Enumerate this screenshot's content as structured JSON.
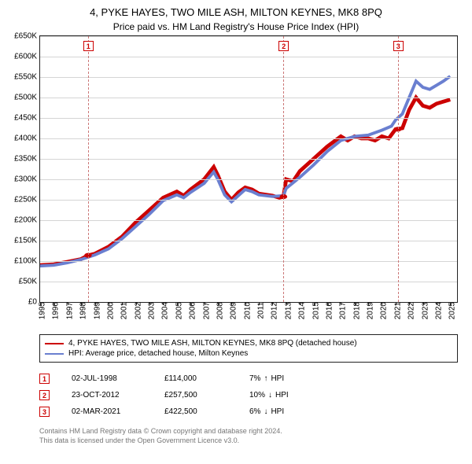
{
  "title": "4, PYKE HAYES, TWO MILE ASH, MILTON KEYNES, MK8 8PQ",
  "subtitle": "Price paid vs. HM Land Registry's House Price Index (HPI)",
  "chart": {
    "type": "line",
    "background_color": "#ffffff",
    "grid_color": "#d5d5d5",
    "y": {
      "min": 0,
      "max": 650000,
      "step": 50000,
      "labels": [
        "£0",
        "£50K",
        "£100K",
        "£150K",
        "£200K",
        "£250K",
        "£300K",
        "£350K",
        "£400K",
        "£450K",
        "£500K",
        "£550K",
        "£600K",
        "£650K"
      ]
    },
    "x": {
      "min": 1995,
      "max": 2025.5,
      "labels": [
        "1995",
        "1996",
        "1997",
        "1998",
        "1999",
        "2000",
        "2001",
        "2002",
        "2003",
        "2004",
        "2005",
        "2006",
        "2007",
        "2008",
        "2009",
        "2010",
        "2011",
        "2012",
        "2013",
        "2014",
        "2015",
        "2016",
        "2017",
        "2018",
        "2019",
        "2020",
        "2021",
        "2022",
        "2023",
        "2024",
        "2025"
      ]
    },
    "series": [
      {
        "name": "series1",
        "color": "#cc0000",
        "width": 1.6,
        "points": [
          [
            1995,
            90000
          ],
          [
            1996,
            92000
          ],
          [
            1997,
            98000
          ],
          [
            1998,
            105000
          ],
          [
            1998.5,
            114000
          ],
          [
            1999,
            118000
          ],
          [
            2000,
            135000
          ],
          [
            2001,
            160000
          ],
          [
            2002,
            195000
          ],
          [
            2003,
            225000
          ],
          [
            2004,
            255000
          ],
          [
            2005,
            270000
          ],
          [
            2005.5,
            260000
          ],
          [
            2006,
            275000
          ],
          [
            2007,
            300000
          ],
          [
            2007.7,
            330000
          ],
          [
            2008,
            310000
          ],
          [
            2008.5,
            270000
          ],
          [
            2009,
            250000
          ],
          [
            2009.5,
            268000
          ],
          [
            2010,
            280000
          ],
          [
            2010.5,
            275000
          ],
          [
            2011,
            265000
          ],
          [
            2012,
            260000
          ],
          [
            2012.5,
            255000
          ],
          [
            2012.8,
            257500
          ],
          [
            2013,
            300000
          ],
          [
            2013.5,
            295000
          ],
          [
            2014,
            320000
          ],
          [
            2015,
            350000
          ],
          [
            2016,
            380000
          ],
          [
            2017,
            405000
          ],
          [
            2017.5,
            395000
          ],
          [
            2018,
            405000
          ],
          [
            2018.5,
            400000
          ],
          [
            2019,
            400000
          ],
          [
            2019.5,
            395000
          ],
          [
            2020,
            405000
          ],
          [
            2020.5,
            400000
          ],
          [
            2021,
            422500
          ],
          [
            2021.5,
            425000
          ],
          [
            2022,
            470000
          ],
          [
            2022.5,
            500000
          ],
          [
            2023,
            480000
          ],
          [
            2023.5,
            475000
          ],
          [
            2024,
            485000
          ],
          [
            2024.5,
            490000
          ],
          [
            2025,
            495000
          ]
        ]
      },
      {
        "name": "series2",
        "color": "#6a7fd0",
        "width": 1.3,
        "points": [
          [
            1995,
            88000
          ],
          [
            1996,
            90000
          ],
          [
            1997,
            96000
          ],
          [
            1998,
            104000
          ],
          [
            1999,
            115000
          ],
          [
            2000,
            130000
          ],
          [
            2001,
            155000
          ],
          [
            2002,
            185000
          ],
          [
            2003,
            215000
          ],
          [
            2004,
            248000
          ],
          [
            2005,
            262000
          ],
          [
            2005.5,
            255000
          ],
          [
            2006,
            268000
          ],
          [
            2007,
            290000
          ],
          [
            2007.7,
            318000
          ],
          [
            2008,
            300000
          ],
          [
            2008.5,
            262000
          ],
          [
            2009,
            245000
          ],
          [
            2009.5,
            260000
          ],
          [
            2010,
            275000
          ],
          [
            2010.5,
            270000
          ],
          [
            2011,
            262000
          ],
          [
            2012,
            258000
          ],
          [
            2012.8,
            260000
          ],
          [
            2013,
            278000
          ],
          [
            2014,
            305000
          ],
          [
            2015,
            335000
          ],
          [
            2016,
            368000
          ],
          [
            2017,
            395000
          ],
          [
            2018,
            405000
          ],
          [
            2019,
            408000
          ],
          [
            2020,
            420000
          ],
          [
            2020.7,
            430000
          ],
          [
            2021,
            445000
          ],
          [
            2021.5,
            460000
          ],
          [
            2022,
            500000
          ],
          [
            2022.5,
            540000
          ],
          [
            2023,
            525000
          ],
          [
            2023.5,
            520000
          ],
          [
            2024,
            530000
          ],
          [
            2024.5,
            540000
          ],
          [
            2025,
            552000
          ]
        ]
      }
    ],
    "markers": [
      {
        "n": "1",
        "year": 1998.5
      },
      {
        "n": "2",
        "year": 2012.8
      },
      {
        "n": "3",
        "year": 2021.17
      }
    ],
    "sale_points": [
      {
        "year": 1998.5,
        "value": 114000
      },
      {
        "year": 2012.8,
        "value": 257500
      },
      {
        "year": 2021.17,
        "value": 422500
      }
    ],
    "point_color": "#cc0000",
    "point_radius": 3
  },
  "legend": [
    {
      "color": "#cc0000",
      "label": "4, PYKE HAYES, TWO MILE ASH, MILTON KEYNES, MK8 8PQ (detached house)"
    },
    {
      "color": "#6a7fd0",
      "label": "HPI: Average price, detached house, Milton Keynes"
    }
  ],
  "events": [
    {
      "n": "1",
      "date": "02-JUL-1998",
      "price": "£114,000",
      "pct": "7%",
      "arrow": "↑",
      "suffix": "HPI"
    },
    {
      "n": "2",
      "date": "23-OCT-2012",
      "price": "£257,500",
      "pct": "10%",
      "arrow": "↓",
      "suffix": "HPI"
    },
    {
      "n": "3",
      "date": "02-MAR-2021",
      "price": "£422,500",
      "pct": "6%",
      "arrow": "↓",
      "suffix": "HPI"
    }
  ],
  "footer1": "Contains HM Land Registry data © Crown copyright and database right 2024.",
  "footer2": "This data is licensed under the Open Government Licence v3.0."
}
